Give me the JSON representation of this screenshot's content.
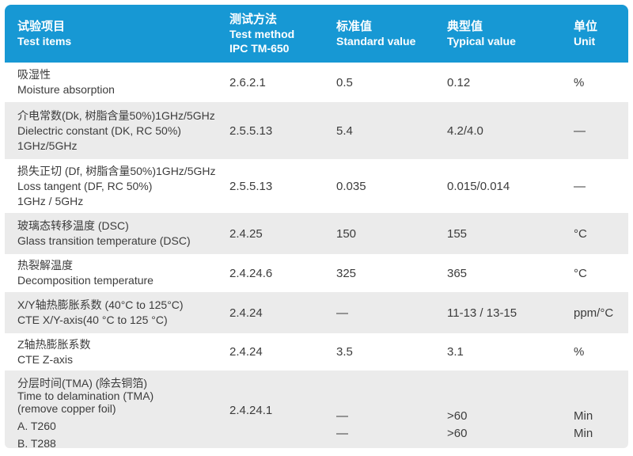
{
  "page": {
    "accent_color": "#1798d4",
    "row_alt_color": "#ebebeb",
    "text_color": "#3c3c3c",
    "header_text_color": "#ffffff"
  },
  "header": {
    "columns": [
      {
        "zh": "试验项目",
        "en": "Test items"
      },
      {
        "zh": "测试方法",
        "en": "Test method",
        "en2": "IPC TM-650"
      },
      {
        "zh": "标准值",
        "en": "Standard value"
      },
      {
        "zh": "典型值",
        "en": "Typical value"
      },
      {
        "zh": "单位",
        "en": "Unit"
      }
    ]
  },
  "rows": [
    {
      "item_lines": [
        "吸湿性",
        "Moisture absorption"
      ],
      "method": "2.6.2.1",
      "standard": "0.5",
      "typical": "0.12",
      "unit": "%"
    },
    {
      "item_lines": [
        "介电常数(Dk, 树脂含量50%)1GHz/5GHz",
        "Dielectric constant (DK, RC 50%)",
        "1GHz/5GHz"
      ],
      "method": "2.5.5.13",
      "standard": "5.4",
      "typical": "4.2/4.0",
      "unit": "—"
    },
    {
      "item_lines": [
        "损失正切 (Df, 树脂含量50%)1GHz/5GHz",
        "Loss tangent (DF, RC 50%)",
        "1GHz / 5GHz"
      ],
      "method": "2.5.5.13",
      "standard": "0.035",
      "typical": "0.015/0.014",
      "unit": "—"
    },
    {
      "item_lines": [
        "玻璃态转移温度 (DSC)",
        "Glass transition temperature (DSC)"
      ],
      "method": "2.4.25",
      "standard": "150",
      "typical": "155",
      "unit": "°C"
    },
    {
      "item_lines": [
        "热裂解温度",
        "Decomposition temperature"
      ],
      "method": "2.4.24.6",
      "standard": "325",
      "typical": "365",
      "unit": "°C"
    },
    {
      "item_lines": [
        "X/Y轴热膨胀系数 (40°C to 125°C)",
        "CTE X/Y-axis(40 °C to 125 °C)"
      ],
      "method": "2.4.24",
      "standard": "—",
      "typical": "11-13 / 13-15",
      "unit": "ppm/°C"
    },
    {
      "item_lines": [
        "Z轴热膨胀系数",
        "CTE Z-axis"
      ],
      "method": "2.4.24",
      "standard": "3.5",
      "typical": "3.1",
      "unit": "%"
    }
  ],
  "delamination_row": {
    "item_lines": [
      "分层时间(TMA) (除去铜箔)",
      "Time to delamination (TMA)",
      "(remove copper foil)"
    ],
    "sub_items": [
      "A. T260",
      "B. T288"
    ],
    "method": "2.4.24.1",
    "sub_values": [
      {
        "standard": "—",
        "typical": ">60",
        "unit": "Min"
      },
      {
        "standard": "—",
        "typical": ">60",
        "unit": "Min"
      }
    ]
  }
}
